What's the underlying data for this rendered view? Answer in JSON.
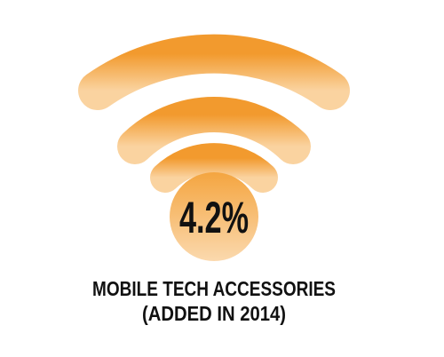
{
  "stat": {
    "value_text": "4.2%"
  },
  "caption": {
    "lines": [
      "MOBILE TECH ACCESSORIES",
      "(ADDED IN 2014)"
    ]
  }
}
